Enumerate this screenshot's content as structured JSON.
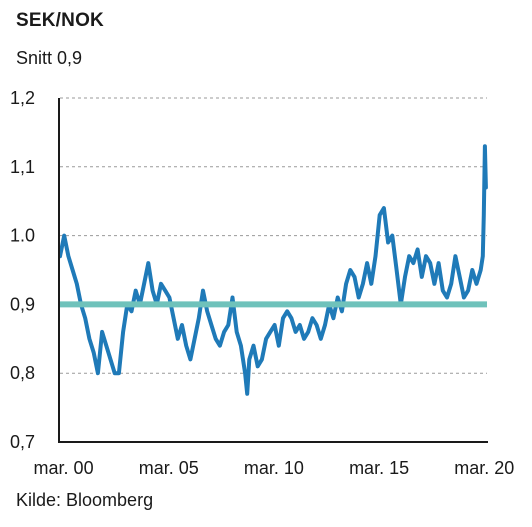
{
  "header": {
    "title": "SEK/NOK",
    "subtitle": "Snitt 0,9"
  },
  "footer": {
    "source": "Kilde: Bloomberg"
  },
  "chart_data": {
    "type": "line",
    "title": "SEK/NOK",
    "subtitle": "Snitt 0,9",
    "ylim": [
      0.7,
      1.2
    ],
    "xlim": [
      2000.0,
      2020.3
    ],
    "y_ticks": [
      {
        "value": 0.7,
        "label": "0,7"
      },
      {
        "value": 0.8,
        "label": "0,8"
      },
      {
        "value": 0.9,
        "label": "0,9"
      },
      {
        "value": 1.0,
        "label": "1.0"
      },
      {
        "value": 1.1,
        "label": "1,1"
      },
      {
        "value": 1.2,
        "label": "1,2"
      }
    ],
    "x_ticks": [
      {
        "value": 2000.17,
        "label": "mar. 00"
      },
      {
        "value": 2005.17,
        "label": "mar. 05"
      },
      {
        "value": 2010.17,
        "label": "mar. 10"
      },
      {
        "value": 2015.17,
        "label": "mar. 15"
      },
      {
        "value": 2020.17,
        "label": "mar. 20"
      }
    ],
    "grid": true,
    "colors": {
      "series": "#1f7ab8",
      "average": "#6fc2bb",
      "grid": "#9a9a9a",
      "axis": "#1a1a1a"
    },
    "series": [
      {
        "style": "line",
        "x": [
          2000.0,
          2000.2,
          2000.4,
          2000.6,
          2000.8,
          2001.0,
          2001.2,
          2001.4,
          2001.6,
          2001.8,
          2002.0,
          2002.2,
          2002.4,
          2002.6,
          2002.8,
          2003.0,
          2003.2,
          2003.4,
          2003.6,
          2003.8,
          2004.0,
          2004.2,
          2004.4,
          2004.6,
          2004.8,
          2005.0,
          2005.2,
          2005.4,
          2005.6,
          2005.8,
          2006.0,
          2006.2,
          2006.4,
          2006.6,
          2006.8,
          2007.0,
          2007.2,
          2007.4,
          2007.6,
          2007.8,
          2008.0,
          2008.2,
          2008.4,
          2008.6,
          2008.8,
          2008.9,
          2009.0,
          2009.2,
          2009.4,
          2009.6,
          2009.8,
          2010.0,
          2010.2,
          2010.4,
          2010.6,
          2010.8,
          2011.0,
          2011.2,
          2011.4,
          2011.6,
          2011.8,
          2012.0,
          2012.2,
          2012.4,
          2012.6,
          2012.8,
          2013.0,
          2013.2,
          2013.4,
          2013.6,
          2013.8,
          2014.0,
          2014.2,
          2014.4,
          2014.6,
          2014.8,
          2015.0,
          2015.2,
          2015.4,
          2015.6,
          2015.8,
          2016.0,
          2016.2,
          2016.4,
          2016.6,
          2016.8,
          2017.0,
          2017.2,
          2017.4,
          2017.6,
          2017.8,
          2018.0,
          2018.2,
          2018.4,
          2018.6,
          2018.8,
          2019.0,
          2019.2,
          2019.4,
          2019.6,
          2019.8,
          2020.0,
          2020.1,
          2020.15,
          2020.2,
          2020.25
        ],
        "y": [
          0.97,
          1.0,
          0.97,
          0.95,
          0.93,
          0.9,
          0.88,
          0.85,
          0.83,
          0.8,
          0.86,
          0.84,
          0.82,
          0.8,
          0.8,
          0.86,
          0.9,
          0.89,
          0.92,
          0.9,
          0.93,
          0.96,
          0.92,
          0.9,
          0.93,
          0.92,
          0.91,
          0.88,
          0.85,
          0.87,
          0.84,
          0.82,
          0.85,
          0.88,
          0.92,
          0.89,
          0.87,
          0.85,
          0.84,
          0.86,
          0.87,
          0.91,
          0.86,
          0.84,
          0.8,
          0.77,
          0.82,
          0.84,
          0.81,
          0.82,
          0.85,
          0.86,
          0.87,
          0.84,
          0.88,
          0.89,
          0.88,
          0.86,
          0.87,
          0.85,
          0.86,
          0.88,
          0.87,
          0.85,
          0.87,
          0.9,
          0.88,
          0.91,
          0.89,
          0.93,
          0.95,
          0.94,
          0.91,
          0.93,
          0.96,
          0.93,
          0.97,
          1.03,
          1.04,
          0.99,
          1.0,
          0.95,
          0.9,
          0.94,
          0.97,
          0.96,
          0.98,
          0.94,
          0.97,
          0.96,
          0.93,
          0.96,
          0.92,
          0.91,
          0.93,
          0.97,
          0.94,
          0.91,
          0.92,
          0.95,
          0.93,
          0.95,
          0.97,
          1.03,
          1.13,
          1.07
        ]
      },
      {
        "style": "reference",
        "x": [
          2000.0,
          2020.3
        ],
        "y": [
          0.9,
          0.9
        ]
      }
    ]
  }
}
